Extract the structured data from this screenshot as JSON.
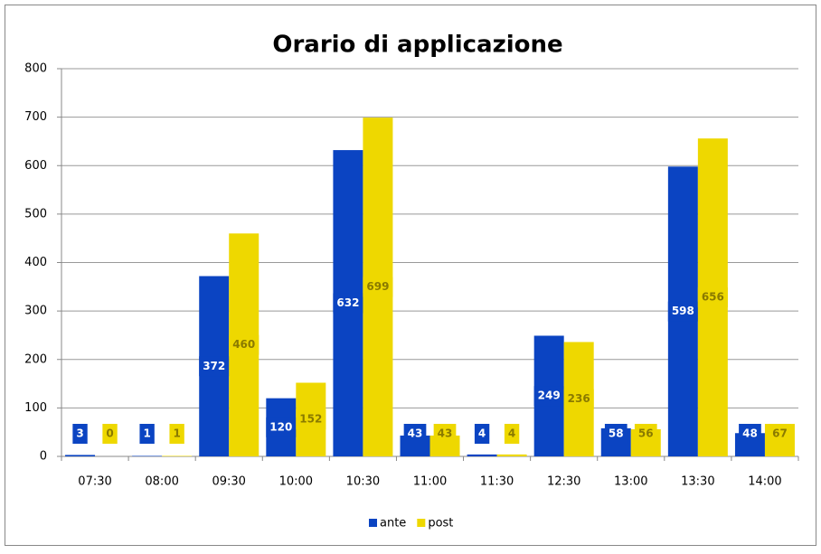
{
  "chart_data": {
    "type": "bar",
    "title": "Orario di applicazione",
    "categories": [
      "07:30",
      "08:00",
      "09:30",
      "10:00",
      "10:30",
      "11:00",
      "11:30",
      "12:30",
      "13:00",
      "13:30",
      "14:00"
    ],
    "series": [
      {
        "name": "ante",
        "color": "#0b44c2",
        "values": [
          3,
          1,
          372,
          120,
          632,
          43,
          4,
          249,
          58,
          598,
          48
        ]
      },
      {
        "name": "post",
        "color": "#eed800",
        "values": [
          0,
          1,
          460,
          152,
          699,
          43,
          4,
          236,
          56,
          656,
          67
        ]
      }
    ],
    "ylim": [
      0,
      800
    ],
    "yticks": [
      0,
      100,
      200,
      300,
      400,
      500,
      600,
      700,
      800
    ],
    "grid": true,
    "legend": "bottom"
  }
}
